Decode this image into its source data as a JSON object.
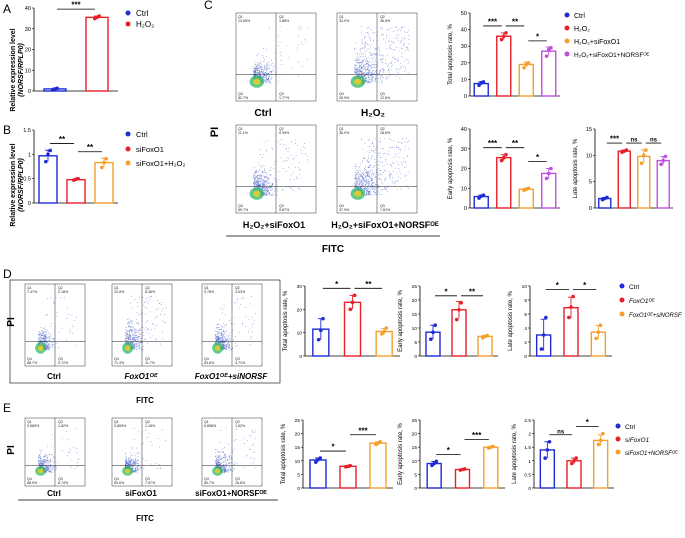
{
  "colors": {
    "ctrl": "#1f2bd6",
    "red": "#e8202a",
    "orange": "#f5a02a",
    "violet": "#c04fe0",
    "flow": "#4a63c8"
  },
  "panel_labels": {
    "A": "A",
    "B": "B",
    "C": "C",
    "D": "D",
    "E": "E"
  },
  "panelA": {
    "ylabel1": "Relative expression level",
    "ylabel2": "(NORSF/RPLP0)",
    "sig": "***",
    "yticks": [
      "0",
      "10",
      "20",
      "30",
      "40"
    ],
    "legend": [
      "Ctrl",
      "H₂O₂"
    ]
  },
  "panelB": {
    "ylabel1": "Relative expression level",
    "ylabel2": "(NORSF/RPLP0)",
    "sig": [
      "**",
      "**"
    ],
    "yticks": [
      "0.0",
      "0.5",
      "1.0",
      "1.5"
    ],
    "legend": [
      "Ctrl",
      "siFoxO1",
      "siFoxO1+H₂O₂"
    ]
  },
  "panelC": {
    "flow_labels": [
      "Ctrl",
      "H₂O₂",
      "H₂O₂+siFoxO1",
      "H₂O₂+siFoxO1+NORSFᴼᴱ"
    ],
    "quads": [
      [
        "Q1",
        "13.65%",
        "Q2",
        "1.88%",
        "Q4",
        "82.7%",
        "Q3",
        "1.77%"
      ],
      [
        "Q1",
        "34.0%",
        "Q2",
        "36.5%",
        "Q4",
        "26.9%",
        "Q3",
        "12.6%"
      ],
      [
        "Q1",
        "11.1%",
        "Q2",
        "9.39%",
        "Q4",
        "69.7%",
        "Q3",
        "9.87%"
      ],
      [
        "Q1",
        "36.0%",
        "Q2",
        "18.6%",
        "Q4",
        "37.9%",
        "Q3",
        "7.61%"
      ]
    ],
    "axis_pi": "PI",
    "axis_fitc": "FITC",
    "legend": [
      "Ctrl",
      "H₂O₂",
      "H₂O₂+siFoxO1",
      "H₂O₂+siFoxO1+NORSFᴼᴱ"
    ]
  },
  "panelD": {
    "flow_labels": [
      "Ctrl",
      "FoxO1ᴼᴱ",
      "FoxO1ᴼᴱ+siNORSF"
    ],
    "quads": [
      [
        "Q1",
        "7.47%",
        "Q2",
        "2.18%",
        "Q4",
        "88.7%",
        "Q3",
        "0.72%"
      ],
      [
        "Q1",
        "13.9%",
        "Q2",
        "8.36%",
        "Q4",
        "71.3%",
        "Q3",
        "11.7%"
      ],
      [
        "Q1",
        "9.78%",
        "Q2",
        "3.53%",
        "Q4",
        "83.6%",
        "Q3",
        "3.71%"
      ]
    ],
    "axis_pi": "PI",
    "axis_fitc": "FITC",
    "legend": [
      "Ctrl",
      "FoxO1ᴼᴱ",
      "FoxO1ᴼᴱ+siNORSF"
    ]
  },
  "panelE": {
    "flow_labels": [
      "Ctrl",
      "siFoxO1",
      "siFoxO1+NORSFᴼᴱ"
    ],
    "quads": [
      [
        "Q1",
        "0.683%",
        "Q2",
        "1.62%",
        "Q4",
        "88.9%",
        "Q3",
        "8.74%"
      ],
      [
        "Q1",
        "0.805%",
        "Q2",
        "1.18%",
        "Q4",
        "90.6%",
        "Q3",
        "7.97%"
      ],
      [
        "Q1",
        "0.858%",
        "Q2",
        "1.52%",
        "Q4",
        "80.7%",
        "Q3",
        "16.8%"
      ]
    ],
    "axis_pi": "PI",
    "axis_fitc": "FITC",
    "legend": [
      "Ctrl",
      "siFoxO1",
      "siFoxO1+NORSFᴼᴱ"
    ]
  },
  "chart_data": [
    {
      "id": "A",
      "type": "bar",
      "categories": [
        "Ctrl",
        "H₂O₂"
      ],
      "values": [
        1,
        35.5
      ],
      "points": [
        [
          0.6,
          1.0,
          1.3
        ],
        [
          34.9,
          35.5,
          36.1
        ]
      ],
      "colors": [
        "ctrl",
        "red"
      ],
      "ylim": [
        0,
        40
      ],
      "yticks": [
        0,
        10,
        20,
        30,
        40
      ],
      "sig": [
        [
          0,
          1,
          "***"
        ]
      ]
    },
    {
      "id": "B",
      "type": "bar",
      "categories": [
        "Ctrl",
        "siFoxO1",
        "siFoxO1+H₂O₂"
      ],
      "values": [
        0.97,
        0.48,
        0.83
      ],
      "points": [
        [
          0.85,
          1.0,
          1.08
        ],
        [
          0.47,
          0.49,
          0.5
        ],
        [
          0.73,
          0.83,
          0.91
        ]
      ],
      "colors": [
        "ctrl",
        "red",
        "orange"
      ],
      "ylim": [
        0,
        1.5
      ],
      "yticks": [
        0,
        0.5,
        1.0,
        1.5
      ],
      "sig": [
        [
          0,
          1,
          "**"
        ],
        [
          1,
          2,
          "**"
        ]
      ]
    },
    {
      "id": "C1",
      "type": "bar",
      "ylabel": "Total apoptosis rate, %",
      "categories": [
        "Ctrl",
        "H₂O₂",
        "H₂O₂+siFoxO1",
        "H₂O₂+siFoxO1+NORSFᴼᴱ"
      ],
      "values": [
        7.5,
        36,
        19,
        27
      ],
      "points": [
        [
          6.5,
          8,
          8.5
        ],
        [
          34,
          36,
          38
        ],
        [
          17,
          19,
          20
        ],
        [
          24,
          28,
          29
        ]
      ],
      "colors": [
        "ctrl",
        "red",
        "orange",
        "violet"
      ],
      "ylim": [
        0,
        50
      ],
      "yticks": [
        0,
        10,
        20,
        30,
        40,
        50
      ],
      "sig": [
        [
          0,
          1,
          "***"
        ],
        [
          1,
          2,
          "**"
        ],
        [
          2,
          3,
          "*"
        ]
      ]
    },
    {
      "id": "C2",
      "type": "bar",
      "ylabel": "Early apoptosis rate, %",
      "categories": [
        "Ctrl",
        "H₂O₂",
        "H₂O₂+siFoxO1",
        "H₂O₂+siFoxO1+NORSFᴼᴱ"
      ],
      "values": [
        5.8,
        25.5,
        9.5,
        17.5
      ],
      "points": [
        [
          5,
          6,
          6.5
        ],
        [
          24,
          25.5,
          27
        ],
        [
          9,
          9.5,
          10
        ],
        [
          15,
          17.5,
          20
        ]
      ],
      "colors": [
        "ctrl",
        "red",
        "orange",
        "violet"
      ],
      "ylim": [
        0,
        40
      ],
      "yticks": [
        0,
        10,
        20,
        30,
        40
      ],
      "sig": [
        [
          0,
          1,
          "***"
        ],
        [
          1,
          2,
          "**"
        ],
        [
          2,
          3,
          "*"
        ]
      ]
    },
    {
      "id": "C3",
      "type": "bar",
      "ylabel": "Late apoptosis rate, %",
      "categories": [
        "Ctrl",
        "H₂O₂",
        "H₂O₂+siFoxO1",
        "H₂O₂+siFoxO1+NORSFᴼᴱ"
      ],
      "values": [
        1.8,
        10.8,
        9.8,
        9
      ],
      "points": [
        [
          1.6,
          1.8,
          2.0
        ],
        [
          10.6,
          10.8,
          11
        ],
        [
          8.5,
          10,
          11
        ],
        [
          8.3,
          9,
          9.8
        ]
      ],
      "colors": [
        "ctrl",
        "red",
        "orange",
        "violet"
      ],
      "ylim": [
        0,
        15
      ],
      "yticks": [
        0,
        5,
        10,
        15
      ],
      "sig": [
        [
          0,
          1,
          "***"
        ],
        [
          1,
          2,
          "ns"
        ],
        [
          2,
          3,
          "ns"
        ]
      ]
    },
    {
      "id": "D1",
      "type": "bar",
      "ylabel": "Total apoptosis rate, %",
      "categories": [
        "Ctrl",
        "FoxO1ᴼᴱ",
        "FoxO1ᴼᴱ+siNORSF"
      ],
      "values": [
        11.5,
        23,
        10.5
      ],
      "points": [
        [
          7,
          11,
          16
        ],
        [
          20,
          23,
          26
        ],
        [
          9.5,
          10.5,
          12
        ]
      ],
      "colors": [
        "ctrl",
        "red",
        "orange"
      ],
      "ylim": [
        0,
        30
      ],
      "yticks": [
        0,
        10,
        20,
        30
      ],
      "sig": [
        [
          0,
          1,
          "*"
        ],
        [
          1,
          2,
          "**"
        ]
      ]
    },
    {
      "id": "D2",
      "type": "bar",
      "ylabel": "Early apoptosis rate, %",
      "categories": [
        "Ctrl",
        "FoxO1ᴼᴱ",
        "FoxO1ᴼᴱ+siNORSF"
      ],
      "values": [
        8.5,
        16.5,
        7
      ],
      "points": [
        [
          6,
          8.5,
          11
        ],
        [
          13,
          16.5,
          19
        ],
        [
          6.5,
          7,
          7.3
        ]
      ],
      "colors": [
        "ctrl",
        "red",
        "orange"
      ],
      "ylim": [
        0,
        25
      ],
      "yticks": [
        0,
        5,
        10,
        15,
        20,
        25
      ],
      "sig": [
        [
          0,
          1,
          "*"
        ],
        [
          1,
          2,
          "**"
        ]
      ]
    },
    {
      "id": "D3",
      "type": "bar",
      "ylabel": "Late apoptosis rate, %",
      "categories": [
        "Ctrl",
        "FoxO1ᴼᴱ",
        "FoxO1ᴼᴱ+siNORSF"
      ],
      "values": [
        3,
        6.9,
        3.4
      ],
      "points": [
        [
          1,
          3,
          5.5
        ],
        [
          5.5,
          7,
          8.5
        ],
        [
          2.5,
          3.4,
          4.4
        ]
      ],
      "colors": [
        "ctrl",
        "red",
        "orange"
      ],
      "ylim": [
        0,
        10
      ],
      "yticks": [
        0,
        2,
        4,
        6,
        8,
        10
      ],
      "sig": [
        [
          0,
          1,
          "*"
        ],
        [
          1,
          2,
          "*"
        ]
      ]
    },
    {
      "id": "E1",
      "type": "bar",
      "ylabel": "Total apoptosis rate, %",
      "categories": [
        "Ctrl",
        "siFoxO1",
        "siFoxO1+NORSFᴼᴱ"
      ],
      "values": [
        10.3,
        8,
        16.5
      ],
      "points": [
        [
          9.5,
          10.5,
          11
        ],
        [
          7.8,
          8,
          8.2
        ],
        [
          16,
          16.5,
          17
        ]
      ],
      "colors": [
        "ctrl",
        "red",
        "orange"
      ],
      "ylim": [
        0,
        25
      ],
      "yticks": [
        0,
        5,
        10,
        15,
        20,
        25
      ],
      "sig": [
        [
          0,
          1,
          "*"
        ],
        [
          1,
          2,
          "***"
        ]
      ]
    },
    {
      "id": "E2",
      "type": "bar",
      "ylabel": "Early apoptosis rate, %",
      "categories": [
        "Ctrl",
        "siFoxO1",
        "siFoxO1+NORSFᴼᴱ"
      ],
      "values": [
        9,
        6.8,
        15
      ],
      "points": [
        [
          8.3,
          9,
          9.8
        ],
        [
          6.6,
          6.8,
          7
        ],
        [
          14.7,
          15,
          15.3
        ]
      ],
      "colors": [
        "ctrl",
        "red",
        "orange"
      ],
      "ylim": [
        0,
        25
      ],
      "yticks": [
        0,
        5,
        10,
        15,
        20,
        25
      ],
      "sig": [
        [
          0,
          1,
          "*"
        ],
        [
          1,
          2,
          "***"
        ]
      ]
    },
    {
      "id": "E3",
      "type": "bar",
      "ylabel": "Late apoptosis rate, %",
      "categories": [
        "Ctrl",
        "siFoxO1",
        "siFoxO1+NORSFᴼᴱ"
      ],
      "values": [
        1.4,
        1.0,
        1.75
      ],
      "points": [
        [
          1.1,
          1.4,
          1.7
        ],
        [
          0.9,
          1.0,
          1.1
        ],
        [
          1.6,
          1.75,
          2.0
        ]
      ],
      "colors": [
        "ctrl",
        "red",
        "orange"
      ],
      "ylim": [
        0,
        2.5
      ],
      "yticks": [
        0,
        0.5,
        1.0,
        1.5,
        2.0,
        2.5
      ],
      "sig": [
        [
          0,
          1,
          "ns"
        ],
        [
          1,
          2,
          "*"
        ]
      ]
    }
  ]
}
